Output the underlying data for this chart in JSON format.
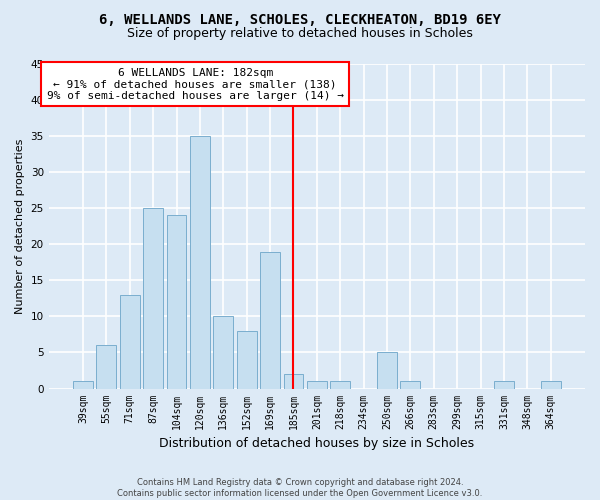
{
  "title1": "6, WELLANDS LANE, SCHOLES, CLECKHEATON, BD19 6EY",
  "title2": "Size of property relative to detached houses in Scholes",
  "xlabel": "Distribution of detached houses by size in Scholes",
  "ylabel": "Number of detached properties",
  "bar_labels": [
    "39sqm",
    "55sqm",
    "71sqm",
    "87sqm",
    "104sqm",
    "120sqm",
    "136sqm",
    "152sqm",
    "169sqm",
    "185sqm",
    "201sqm",
    "218sqm",
    "234sqm",
    "250sqm",
    "266sqm",
    "283sqm",
    "299sqm",
    "315sqm",
    "331sqm",
    "348sqm",
    "364sqm"
  ],
  "bar_heights": [
    1,
    6,
    13,
    25,
    24,
    35,
    10,
    8,
    19,
    2,
    1,
    1,
    0,
    5,
    1,
    0,
    0,
    0,
    1,
    0,
    1
  ],
  "bar_color": "#c6dff0",
  "bar_edge_color": "#7aaece",
  "annotation_title": "6 WELLANDS LANE: 182sqm",
  "annotation_line1": "← 91% of detached houses are smaller (138)",
  "annotation_line2": "9% of semi-detached houses are larger (14) →",
  "ylim": [
    0,
    45
  ],
  "yticks": [
    0,
    5,
    10,
    15,
    20,
    25,
    30,
    35,
    40,
    45
  ],
  "footnote1": "Contains HM Land Registry data © Crown copyright and database right 2024.",
  "footnote2": "Contains public sector information licensed under the Open Government Licence v3.0.",
  "bg_color": "#ddeaf6",
  "plot_bg_color": "#ddeaf6",
  "grid_color": "#ffffff",
  "title1_fontsize": 10,
  "title2_fontsize": 9,
  "xlabel_fontsize": 9,
  "ylabel_fontsize": 8,
  "tick_fontsize": 7,
  "footnote_fontsize": 6,
  "annotation_fontsize": 8
}
